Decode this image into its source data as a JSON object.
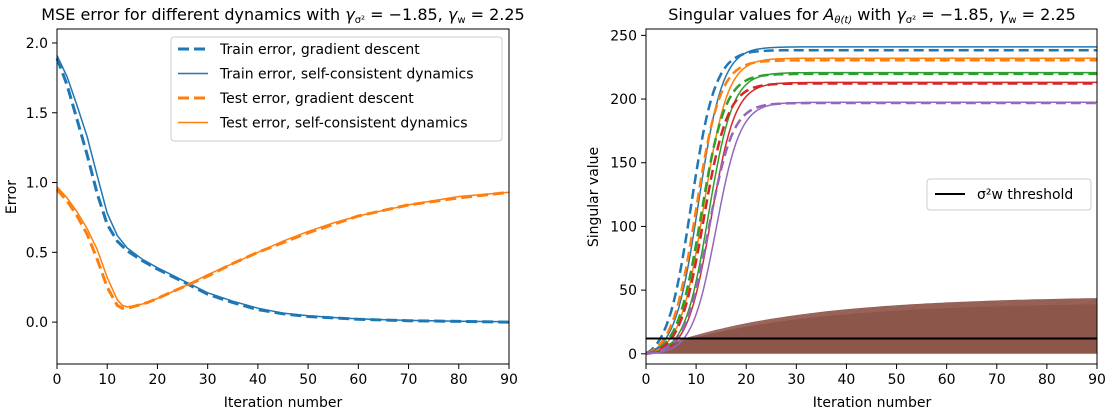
{
  "chart_data": [
    {
      "type": "line",
      "title": "MSE error for different dynamics with γσ² = −1.85, γw = 2.25",
      "xlabel": "Iteration number",
      "ylabel": "Error",
      "xlim": [
        0,
        90
      ],
      "ylim": [
        -0.3,
        2.1
      ],
      "xticks": [
        "0",
        "10",
        "20",
        "30",
        "40",
        "50",
        "60",
        "70",
        "80",
        "90"
      ],
      "yticks": [
        "0.0",
        "0.5",
        "1.0",
        "1.5",
        "2.0"
      ],
      "grid": false,
      "legend_position": "top-right",
      "series": [
        {
          "name": "Train error, gradient descent",
          "color": "#1f77b4",
          "style": "dashed",
          "x": [
            0,
            2,
            4,
            6,
            8,
            10,
            12,
            14,
            17,
            20,
            25,
            30,
            35,
            40,
            45,
            50,
            55,
            60,
            70,
            80,
            90
          ],
          "y": [
            1.89,
            1.7,
            1.45,
            1.2,
            0.92,
            0.7,
            0.58,
            0.51,
            0.44,
            0.38,
            0.29,
            0.2,
            0.14,
            0.09,
            0.06,
            0.04,
            0.03,
            0.02,
            0.01,
            0.005,
            0.0
          ]
        },
        {
          "name": "Train error, self-consistent dynamics",
          "color": "#1f77b4",
          "style": "solid",
          "x": [
            0,
            2,
            4,
            6,
            8,
            10,
            12,
            14,
            17,
            20,
            25,
            30,
            35,
            40,
            45,
            50,
            55,
            60,
            70,
            80,
            90
          ],
          "y": [
            1.91,
            1.76,
            1.55,
            1.33,
            1.05,
            0.78,
            0.62,
            0.53,
            0.45,
            0.39,
            0.3,
            0.21,
            0.15,
            0.1,
            0.065,
            0.045,
            0.033,
            0.023,
            0.012,
            0.006,
            0.002
          ]
        },
        {
          "name": "Test error, gradient descent",
          "color": "#ff7f0e",
          "style": "dashed",
          "x": [
            0,
            2,
            4,
            6,
            8,
            10,
            12,
            13,
            14,
            16,
            18,
            20,
            25,
            30,
            35,
            40,
            45,
            50,
            55,
            60,
            70,
            80,
            90
          ],
          "y": [
            0.95,
            0.87,
            0.76,
            0.63,
            0.45,
            0.25,
            0.12,
            0.1,
            0.1,
            0.12,
            0.14,
            0.17,
            0.25,
            0.33,
            0.42,
            0.5,
            0.57,
            0.64,
            0.7,
            0.76,
            0.84,
            0.89,
            0.93
          ]
        },
        {
          "name": "Test error, self-consistent dynamics",
          "color": "#ff7f0e",
          "style": "solid",
          "x": [
            0,
            2,
            4,
            6,
            8,
            10,
            12,
            13,
            14,
            16,
            18,
            20,
            25,
            30,
            35,
            40,
            45,
            50,
            55,
            60,
            70,
            80,
            90
          ],
          "y": [
            0.97,
            0.89,
            0.79,
            0.67,
            0.52,
            0.32,
            0.16,
            0.12,
            0.11,
            0.12,
            0.14,
            0.17,
            0.25,
            0.34,
            0.42,
            0.5,
            0.58,
            0.65,
            0.71,
            0.76,
            0.84,
            0.9,
            0.93
          ]
        }
      ]
    },
    {
      "type": "line",
      "title": "Singular values for Aθ(t) with γσ² = −1.85, γw = 2.25",
      "xlabel": "Iteration number",
      "ylabel": "Singular value",
      "xlim": [
        0,
        90
      ],
      "ylim": [
        -8,
        255
      ],
      "xticks": [
        "0",
        "10",
        "20",
        "30",
        "40",
        "50",
        "60",
        "70",
        "80",
        "90"
      ],
      "yticks": [
        "0",
        "50",
        "100",
        "150",
        "200",
        "250"
      ],
      "grid": false,
      "legend_position": "center-right",
      "threshold": {
        "name": "σ²w threshold",
        "color": "#000000",
        "value": 12
      },
      "sigmoid_series": [
        {
          "color": "#1f77b4",
          "plateau": 244,
          "dashed_midpoint": 9,
          "solid_midpoint": 10.5
        },
        {
          "color": "#ff7f0e",
          "plateau": 234,
          "dashed_midpoint": 10,
          "solid_midpoint": 11.5
        },
        {
          "color": "#2ca02c",
          "plateau": 222,
          "dashed_midpoint": 11,
          "solid_midpoint": 12.5
        },
        {
          "color": "#d62728",
          "plateau": 214,
          "dashed_midpoint": 11.5,
          "solid_midpoint": 13
        },
        {
          "color": "#9467bd",
          "plateau": 198,
          "dashed_midpoint": 12.5,
          "solid_midpoint": 14
        }
      ],
      "bulk_band": {
        "color": "#8c564b",
        "upper_plateau": 44,
        "lower": 0
      }
    }
  ]
}
